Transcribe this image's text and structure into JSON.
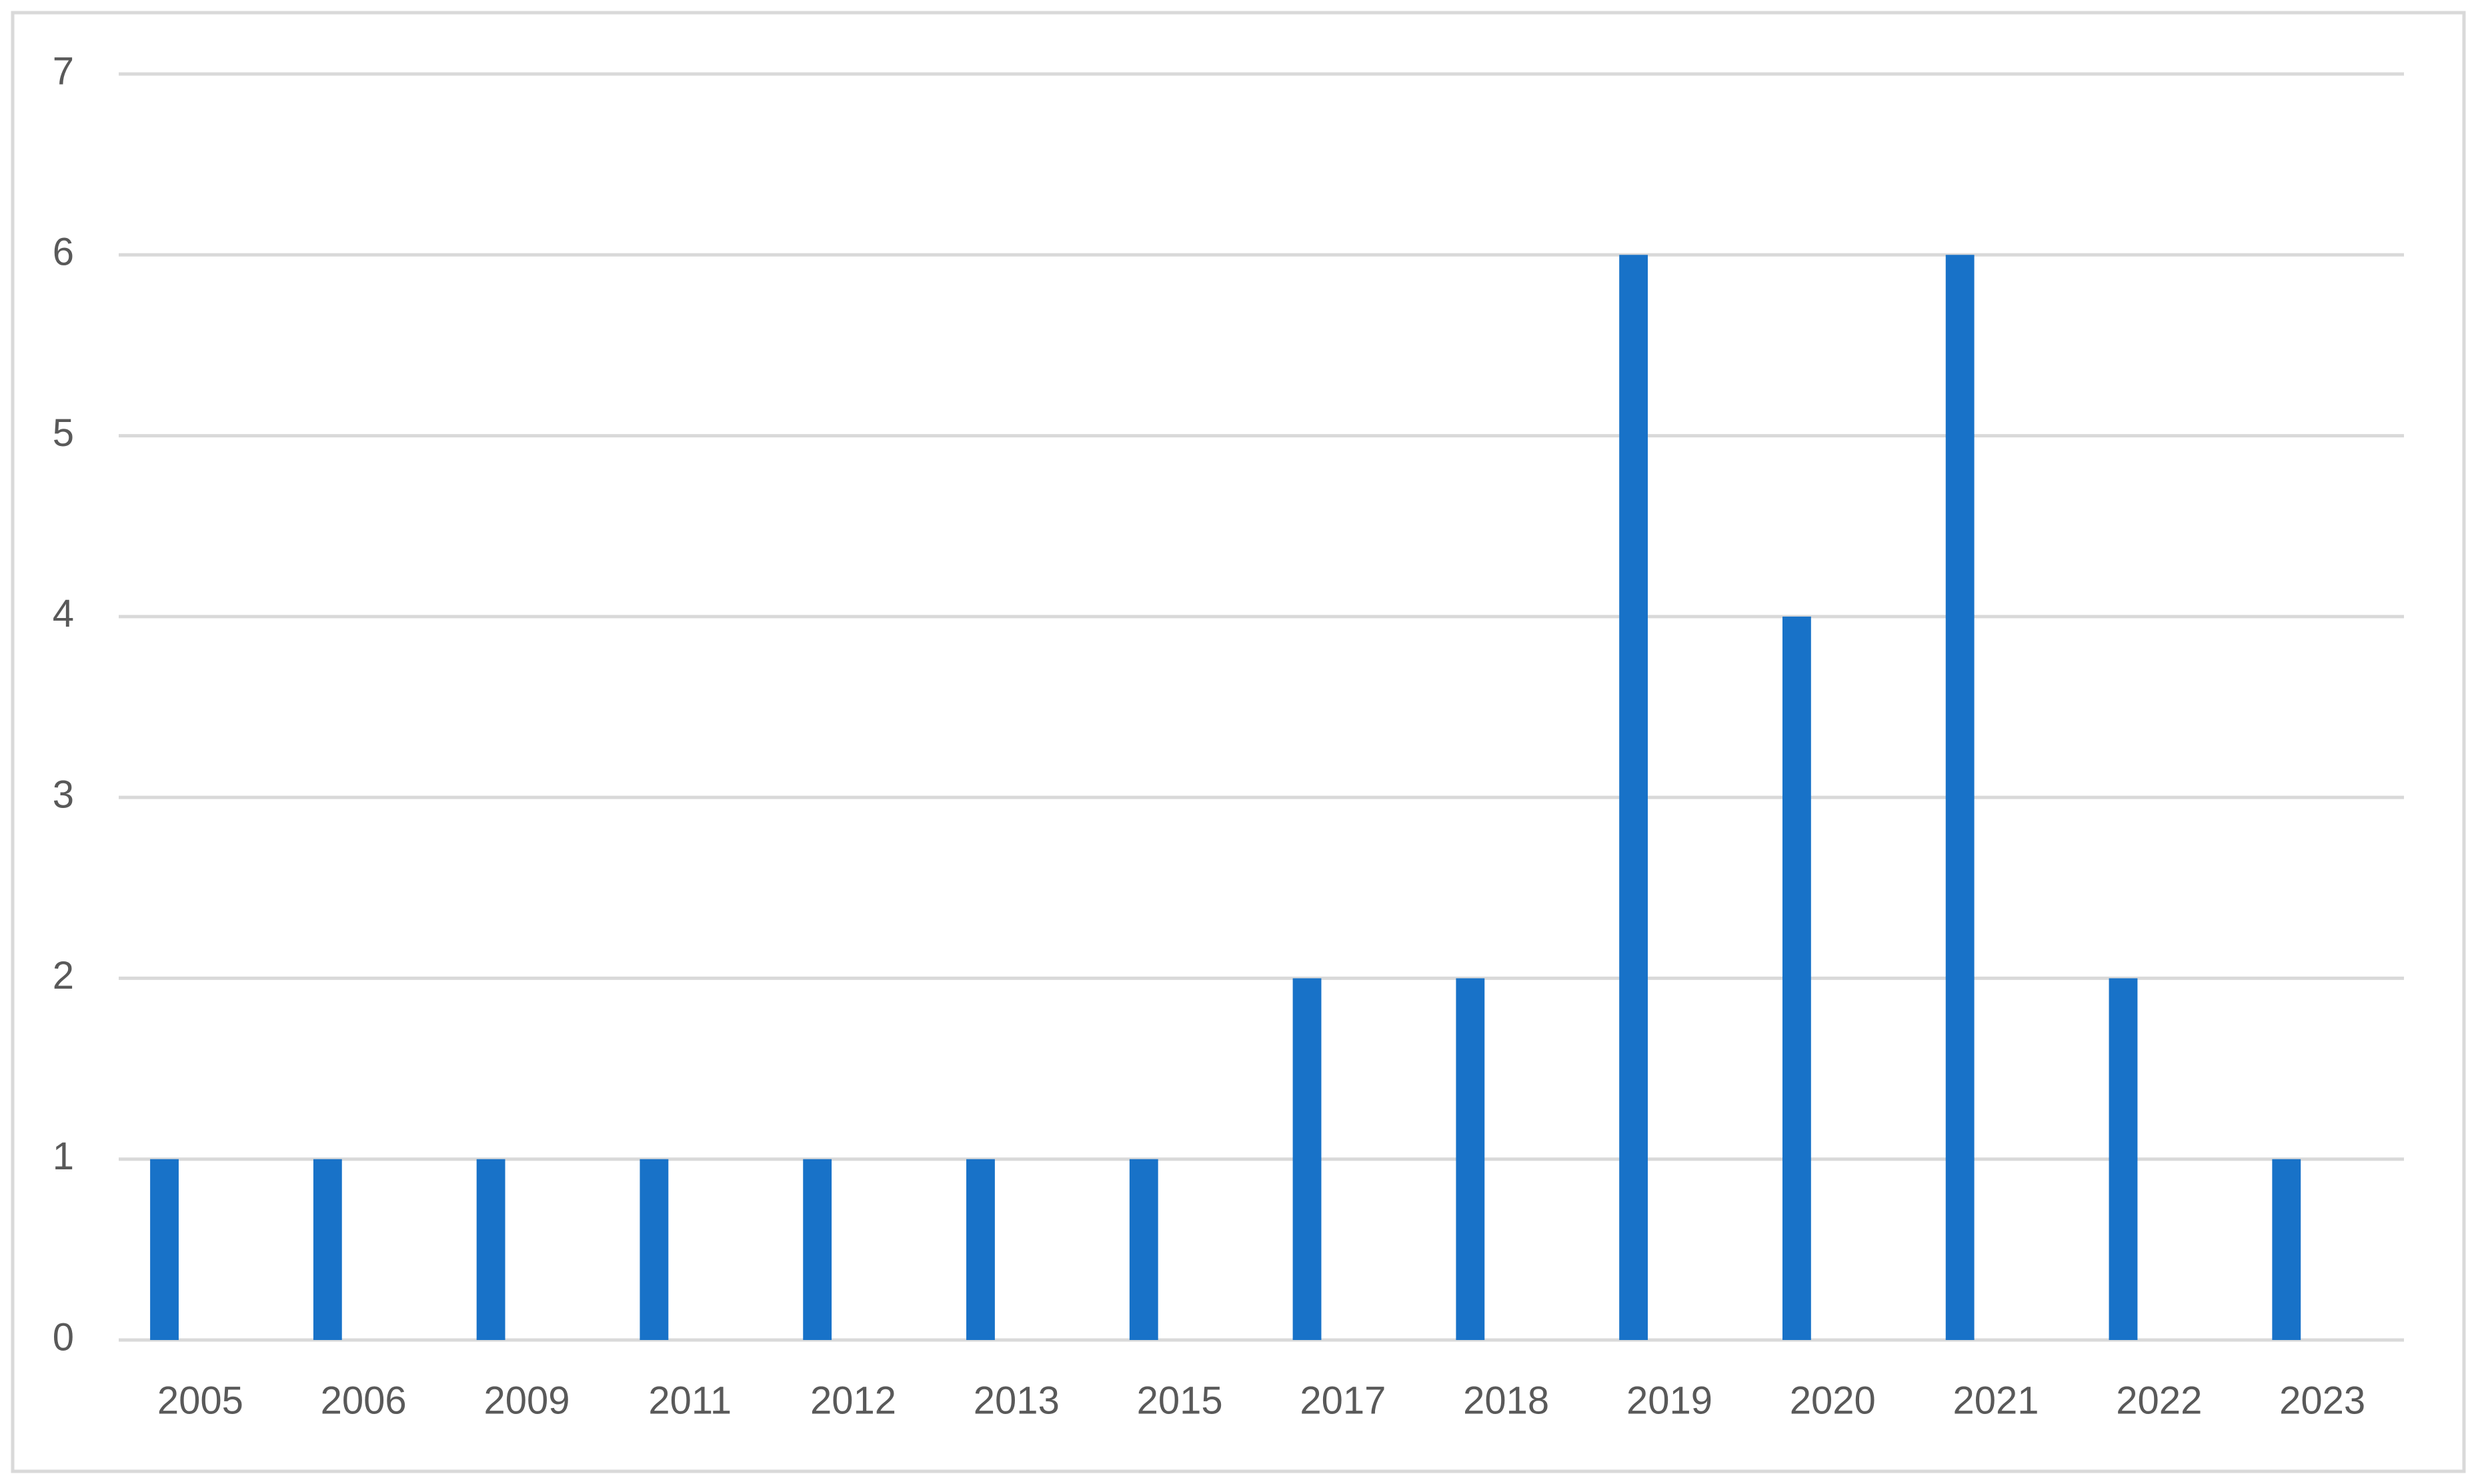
{
  "chart_data": {
    "type": "bar",
    "categories": [
      "2005",
      "2006",
      "2009",
      "2011",
      "2012",
      "2013",
      "2015",
      "2017",
      "2018",
      "2019",
      "2020",
      "2021",
      "2022",
      "2023"
    ],
    "values": [
      1,
      1,
      1,
      1,
      1,
      1,
      1,
      2,
      2,
      6,
      4,
      6,
      2,
      1
    ],
    "color": "#1872c8",
    "ylim": [
      0,
      7
    ],
    "yticks": [
      0,
      1,
      2,
      3,
      4,
      5,
      6,
      7
    ],
    "grid": true
  }
}
